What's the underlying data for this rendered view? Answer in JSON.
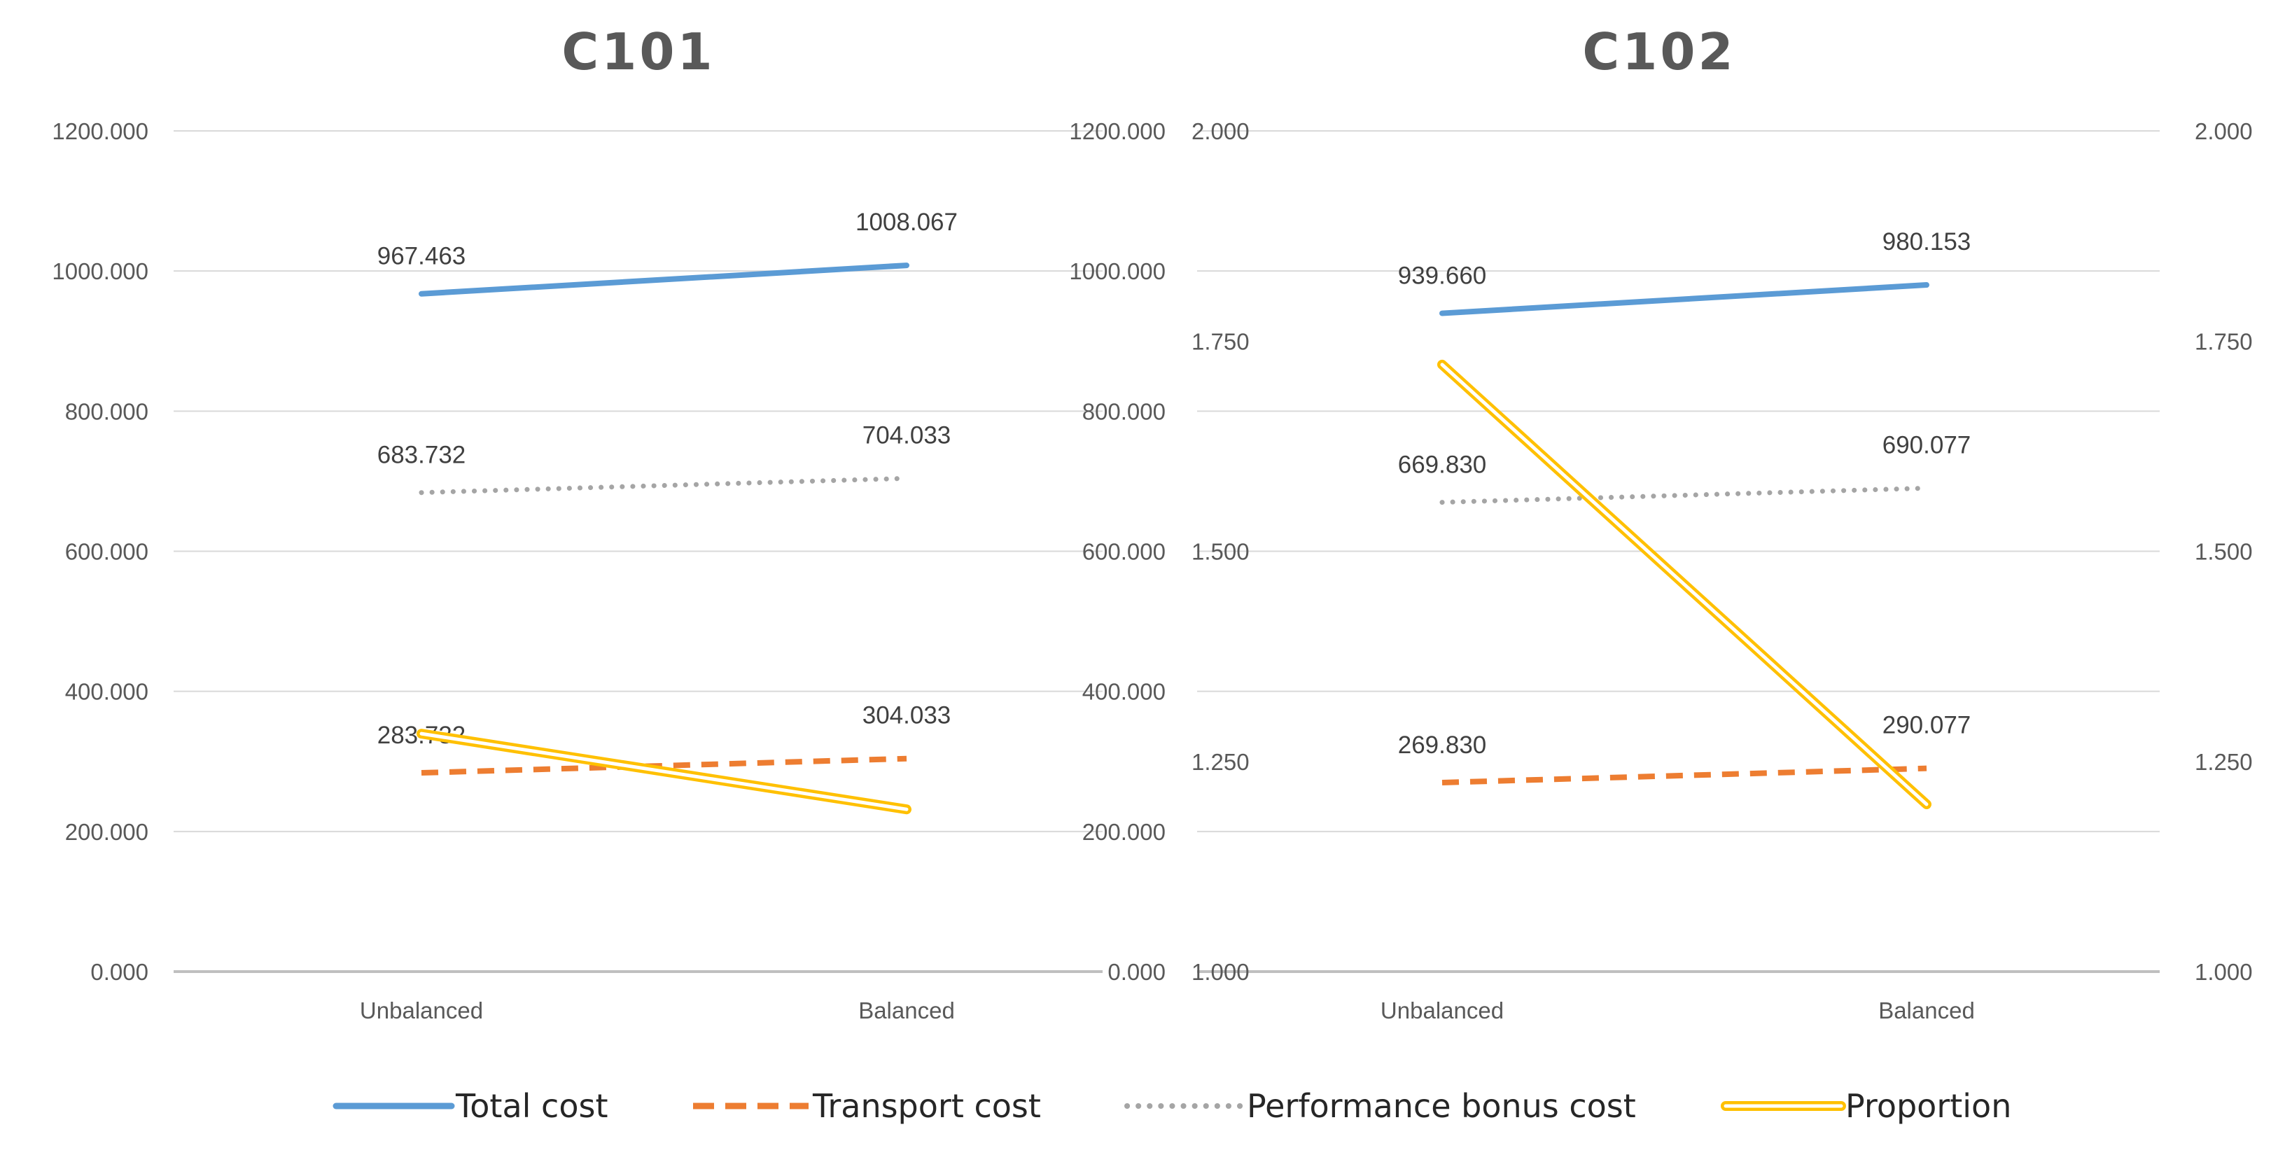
{
  "chart_data": [
    {
      "type": "line",
      "title": "C101",
      "categories": [
        "Unbalanced",
        "Balanced"
      ],
      "primary_axis": {
        "ticks": [
          "0.000",
          "200.000",
          "400.000",
          "600.000",
          "800.000",
          "1000.000",
          "1200.000"
        ],
        "ylim": [
          0,
          1200
        ]
      },
      "secondary_axis": {
        "ticks": [
          "1.000",
          "1.250",
          "1.500",
          "1.750",
          "2.000"
        ],
        "ylim": [
          1,
          2
        ],
        "shown": false
      },
      "series": [
        {
          "name": "Total cost",
          "axis": "primary",
          "values": [
            967.463,
            1008.067
          ],
          "labels": [
            "967.463",
            "1008.067"
          ]
        },
        {
          "name": "Transport cost",
          "axis": "primary",
          "values": [
            283.732,
            304.033
          ],
          "labels": [
            "283.732",
            "304.033"
          ]
        },
        {
          "name": "Performance bonus cost",
          "axis": "primary",
          "values": [
            683.732,
            704.033
          ],
          "labels": [
            "683.732",
            "704.033"
          ]
        },
        {
          "name": "Proportion",
          "axis": "secondary",
          "values": [
            1.283,
            1.193
          ],
          "labels": []
        }
      ]
    },
    {
      "type": "line",
      "title": "C102",
      "categories": [
        "Unbalanced",
        "Balanced"
      ],
      "primary_axis": {
        "ticks": [
          "0.000",
          "200.000",
          "400.000",
          "600.000",
          "800.000",
          "1000.000",
          "1200.000"
        ],
        "ylim": [
          0,
          1200
        ]
      },
      "secondary_axis": {
        "ticks": [
          "1.000",
          "1.250",
          "1.500",
          "1.750",
          "2.000"
        ],
        "ylim": [
          1,
          2
        ],
        "shown": true
      },
      "series": [
        {
          "name": "Total cost",
          "axis": "primary",
          "values": [
            939.66,
            980.153
          ],
          "labels": [
            "939.660",
            "980.153"
          ]
        },
        {
          "name": "Transport cost",
          "axis": "primary",
          "values": [
            269.83,
            290.077
          ],
          "labels": [
            "269.830",
            "290.077"
          ]
        },
        {
          "name": "Performance bonus cost",
          "axis": "primary",
          "values": [
            669.83,
            690.077
          ],
          "labels": [
            "669.830",
            "690.077"
          ]
        },
        {
          "name": "Proportion",
          "axis": "secondary",
          "values": [
            1.722,
            1.199
          ],
          "labels": []
        }
      ]
    }
  ],
  "legend": [
    {
      "name": "Total cost",
      "color": "#5B9BD5",
      "style": "solid"
    },
    {
      "name": "Transport cost",
      "color": "#ED7D31",
      "style": "dashed"
    },
    {
      "name": "Performance bonus cost",
      "color": "#A5A5A5",
      "style": "dotted"
    },
    {
      "name": "Proportion",
      "color": "#FFC000",
      "style": "double"
    }
  ],
  "colors": {
    "gridline": "#D9D9D9",
    "baseline": "#BFBFBF",
    "total": "#5B9BD5",
    "transport": "#ED7D31",
    "bonus": "#A5A5A5",
    "proportion": "#FFC000"
  }
}
